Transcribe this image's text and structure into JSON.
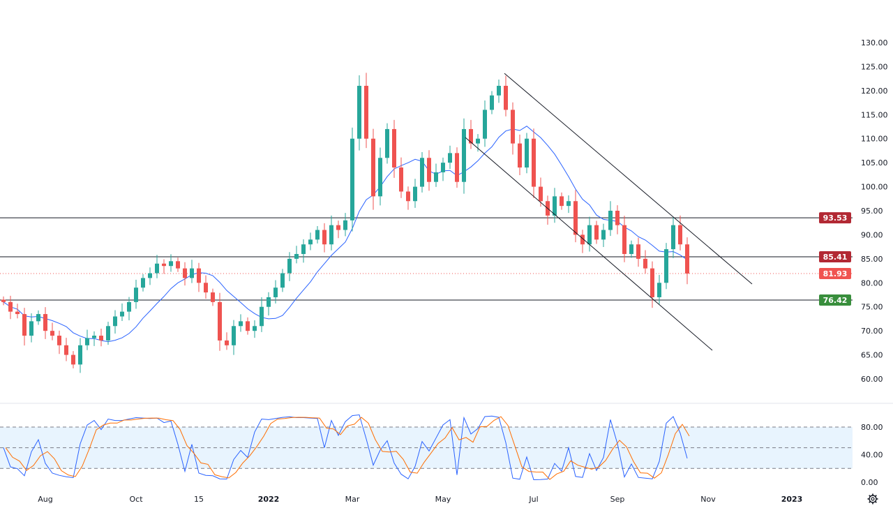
{
  "chart_data": {
    "type": "candlestick",
    "price_axis": {
      "ylim": [
        55,
        133
      ],
      "ticks": [
        "130.00",
        "125.00",
        "120.00",
        "115.00",
        "110.00",
        "105.00",
        "100.00",
        "95.00",
        "90.00",
        "85.00",
        "80.00",
        "75.00",
        "70.00",
        "65.00",
        "60.00"
      ]
    },
    "time_axis": {
      "ticks": [
        "Aug",
        "Oct",
        "15",
        "2022",
        "Mar",
        "May",
        "Jul",
        "Sep",
        "Nov",
        "2023"
      ],
      "tick_bar_index": [
        6,
        19,
        28,
        38,
        50,
        63,
        76,
        88,
        101,
        113
      ]
    },
    "closes": [
      76,
      74,
      73.5,
      69,
      72,
      73.5,
      70,
      69,
      67,
      65,
      63,
      67,
      68.5,
      69,
      68,
      71,
      73,
      74,
      76,
      79,
      81,
      82,
      84,
      83.5,
      84.5,
      83,
      81,
      83,
      80,
      78,
      76,
      68,
      67,
      71,
      72,
      70,
      71,
      75,
      77,
      79,
      82,
      85,
      86,
      88,
      89,
      91,
      88,
      92,
      91,
      93,
      110,
      121,
      110,
      98,
      106,
      112,
      104,
      99,
      97,
      100,
      106,
      101,
      103,
      105,
      107,
      101,
      112,
      109,
      110,
      116,
      119,
      121,
      116,
      109,
      104,
      110,
      100,
      97,
      94,
      98,
      96,
      97,
      90,
      88,
      92,
      89,
      91,
      95,
      92,
      86,
      88,
      85,
      83,
      77,
      80,
      87,
      92,
      88,
      81.93
    ],
    "colors": {
      "up": "#26a69a",
      "down": "#ef5350",
      "ma": "#2962ff",
      "stoch_k": "#2962ff",
      "stoch_d": "#ff6d00"
    },
    "levels": [
      {
        "value": 93.53,
        "label": "93.53",
        "color": "#b22833"
      },
      {
        "value": 85.41,
        "label": "85.41",
        "color": "#b22833"
      },
      {
        "value": 81.93,
        "label": "81.93",
        "color": "#f05350",
        "style": "dotted"
      },
      {
        "value": 76.42,
        "label": "76.42",
        "color": "#388e3c"
      }
    ],
    "channel": {
      "upper": [
        {
          "bar": 71.8,
          "price": 123.6
        },
        {
          "bar": 107.3,
          "price": 79.75
        }
      ],
      "lower": [
        {
          "bar": 66.2,
          "price": 110.25
        },
        {
          "bar": 101.6,
          "price": 65.95
        }
      ]
    },
    "oscillator": {
      "ticks": [
        "80.00",
        "40.00",
        "0.00"
      ],
      "bands": [
        20,
        50,
        80
      ],
      "ylim": [
        -10,
        112
      ]
    }
  }
}
